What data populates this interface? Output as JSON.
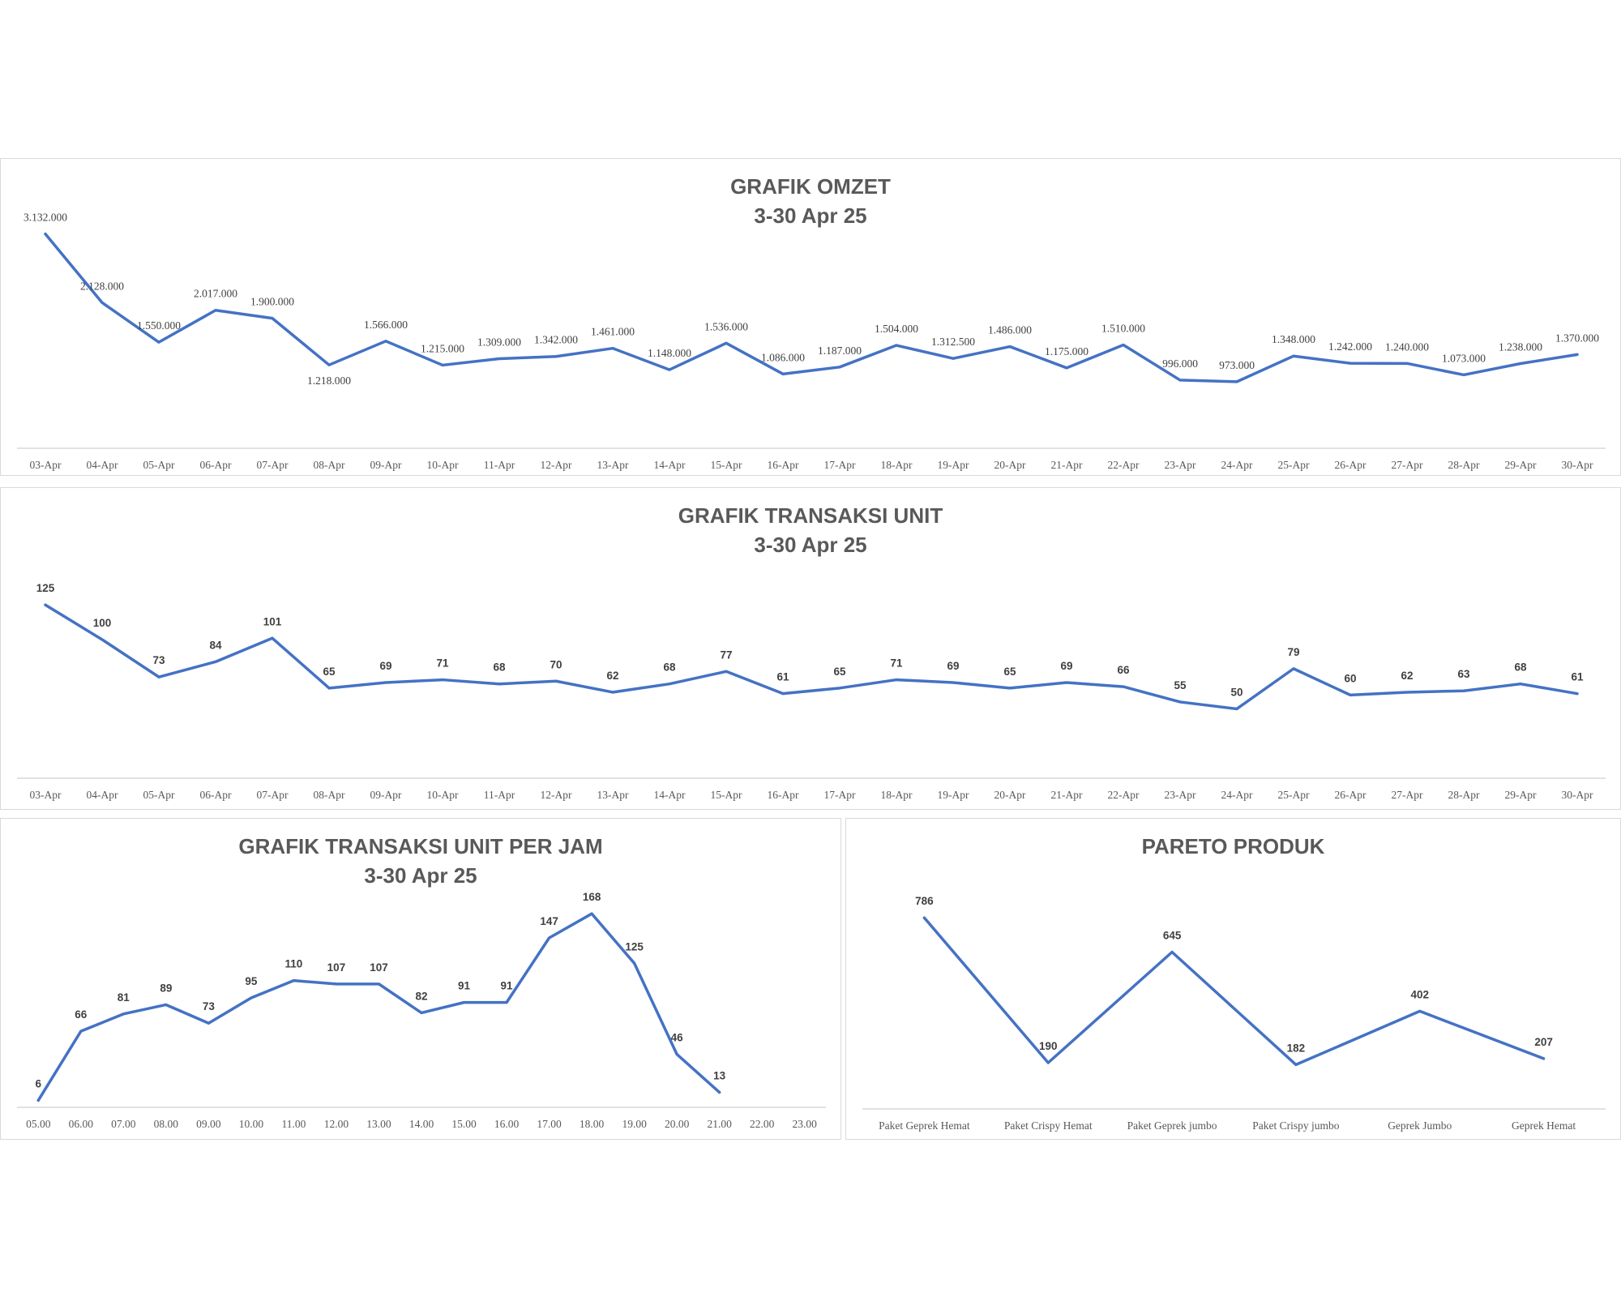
{
  "colors": {
    "line": "#4472c4",
    "axis": "#d9d9d9",
    "text": "#595959"
  },
  "chart_data": [
    {
      "type": "line",
      "title": "GRAFIK OMZET",
      "subtitle": "3-30 Apr 25",
      "categories": [
        "03-Apr",
        "04-Apr",
        "05-Apr",
        "06-Apr",
        "07-Apr",
        "08-Apr",
        "09-Apr",
        "10-Apr",
        "11-Apr",
        "12-Apr",
        "13-Apr",
        "14-Apr",
        "15-Apr",
        "16-Apr",
        "17-Apr",
        "18-Apr",
        "19-Apr",
        "20-Apr",
        "21-Apr",
        "22-Apr",
        "23-Apr",
        "24-Apr",
        "25-Apr",
        "26-Apr",
        "27-Apr",
        "28-Apr",
        "29-Apr",
        "30-Apr"
      ],
      "values": [
        3132000,
        2128000,
        1550000,
        2017000,
        1900000,
        1218000,
        1566000,
        1215000,
        1309000,
        1342000,
        1461000,
        1148000,
        1536000,
        1086000,
        1187000,
        1504000,
        1312500,
        1486000,
        1175000,
        1510000,
        996000,
        973000,
        1348000,
        1242000,
        1240000,
        1073000,
        1238000,
        1370000
      ],
      "labels": [
        "3.132.000",
        "2.128.000",
        "1.550.000",
        "2.017.000",
        "1.900.000",
        "1.218.000",
        "1.566.000",
        "1.215.000",
        "1.309.000",
        "1.342.000",
        "1.461.000",
        "1.148.000",
        "1.536.000",
        "1.086.000",
        "1.187.000",
        "1.504.000",
        "1.312.500",
        "1.486.000",
        "1.175.000",
        "1.510.000",
        "996.000",
        "973.000",
        "1.348.000",
        "1.242.000",
        "1.240.000",
        "1.073.000",
        "1.238.000",
        "1.370.000"
      ],
      "ylim": [
        0,
        3400000
      ],
      "grid": false,
      "legend": "none"
    },
    {
      "type": "line",
      "title": "GRAFIK TRANSAKSI UNIT",
      "subtitle": "3-30 Apr 25",
      "categories": [
        "03-Apr",
        "04-Apr",
        "05-Apr",
        "06-Apr",
        "07-Apr",
        "08-Apr",
        "09-Apr",
        "10-Apr",
        "11-Apr",
        "12-Apr",
        "13-Apr",
        "14-Apr",
        "15-Apr",
        "16-Apr",
        "17-Apr",
        "18-Apr",
        "19-Apr",
        "20-Apr",
        "21-Apr",
        "22-Apr",
        "23-Apr",
        "24-Apr",
        "25-Apr",
        "26-Apr",
        "27-Apr",
        "28-Apr",
        "29-Apr",
        "30-Apr"
      ],
      "values": [
        125,
        100,
        73,
        84,
        101,
        65,
        69,
        71,
        68,
        70,
        62,
        68,
        77,
        61,
        65,
        71,
        69,
        65,
        69,
        66,
        55,
        50,
        79,
        60,
        62,
        63,
        68,
        61
      ],
      "ylim": [
        0,
        145
      ],
      "grid": false,
      "legend": "none"
    },
    {
      "type": "line",
      "title": "GRAFIK TRANSAKSI UNIT PER JAM",
      "subtitle": "3-30 Apr 25",
      "categories": [
        "05.00",
        "06.00",
        "07.00",
        "08.00",
        "09.00",
        "10.00",
        "11.00",
        "12.00",
        "13.00",
        "14.00",
        "15.00",
        "16.00",
        "17.00",
        "18.00",
        "19.00",
        "20.00",
        "21.00",
        "22.00",
        "23.00"
      ],
      "values": [
        6,
        66,
        81,
        89,
        73,
        95,
        110,
        107,
        107,
        82,
        91,
        91,
        147,
        168,
        125,
        46,
        13,
        null,
        null
      ],
      "ylim": [
        0,
        185
      ],
      "grid": false,
      "legend": "none"
    },
    {
      "type": "line",
      "title": "PARETO PRODUK",
      "subtitle": "",
      "categories": [
        "Paket Geprek Hemat",
        "Paket Crispy Hemat",
        "Paket Geprek jumbo",
        "Paket Crispy jumbo",
        "Geprek Jumbo",
        "Geprek Hemat"
      ],
      "values": [
        786,
        190,
        645,
        182,
        402,
        207
      ],
      "ylim": [
        0,
        900
      ],
      "grid": false,
      "legend": "none"
    }
  ]
}
